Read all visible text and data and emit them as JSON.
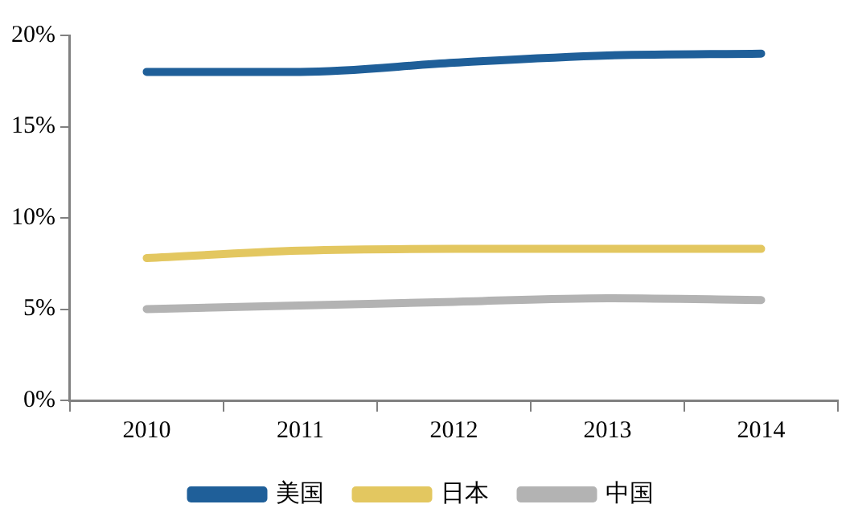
{
  "chart_data": {
    "type": "line",
    "categories": [
      "2010",
      "2011",
      "2012",
      "2013",
      "2014"
    ],
    "series": [
      {
        "name": "美国",
        "color": "#1f5f99",
        "values": [
          18.0,
          18.0,
          18.5,
          18.9,
          19.0
        ]
      },
      {
        "name": "日本",
        "color": "#e3c760",
        "values": [
          7.8,
          8.2,
          8.3,
          8.3,
          8.3
        ]
      },
      {
        "name": "中国",
        "color": "#b3b3b3",
        "values": [
          5.0,
          5.2,
          5.4,
          5.6,
          5.5
        ]
      }
    ],
    "ylim": [
      0,
      20
    ],
    "yticks": [
      {
        "value": 0,
        "label": "0%"
      },
      {
        "value": 5,
        "label": "5%"
      },
      {
        "value": 10,
        "label": "10%"
      },
      {
        "value": 15,
        "label": "15%"
      },
      {
        "value": 20,
        "label": "20%"
      }
    ],
    "grid": false,
    "legend": "bottom",
    "marker": "none",
    "line_style": "solid"
  }
}
